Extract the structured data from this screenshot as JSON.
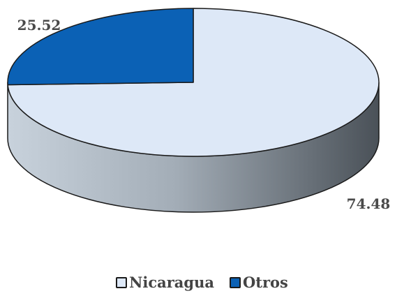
{
  "chart_data": {
    "type": "pie",
    "style": "3d",
    "slices": [
      {
        "label": "Nicaragua",
        "value": 74.48,
        "color": "#dde8f7"
      },
      {
        "label": "Otros",
        "value": 25.52,
        "color": "#0b61b5"
      }
    ],
    "data_labels": [
      "74.48",
      "25.52"
    ],
    "legend": {
      "position": "bottom",
      "entries": [
        "Nicaragua",
        "Otros"
      ]
    }
  },
  "colors": {
    "edge": "#1a1a1a",
    "side_light": "#c8d2dc",
    "side_dark": "#4a5158",
    "label_text": "#4a4a4a"
  }
}
